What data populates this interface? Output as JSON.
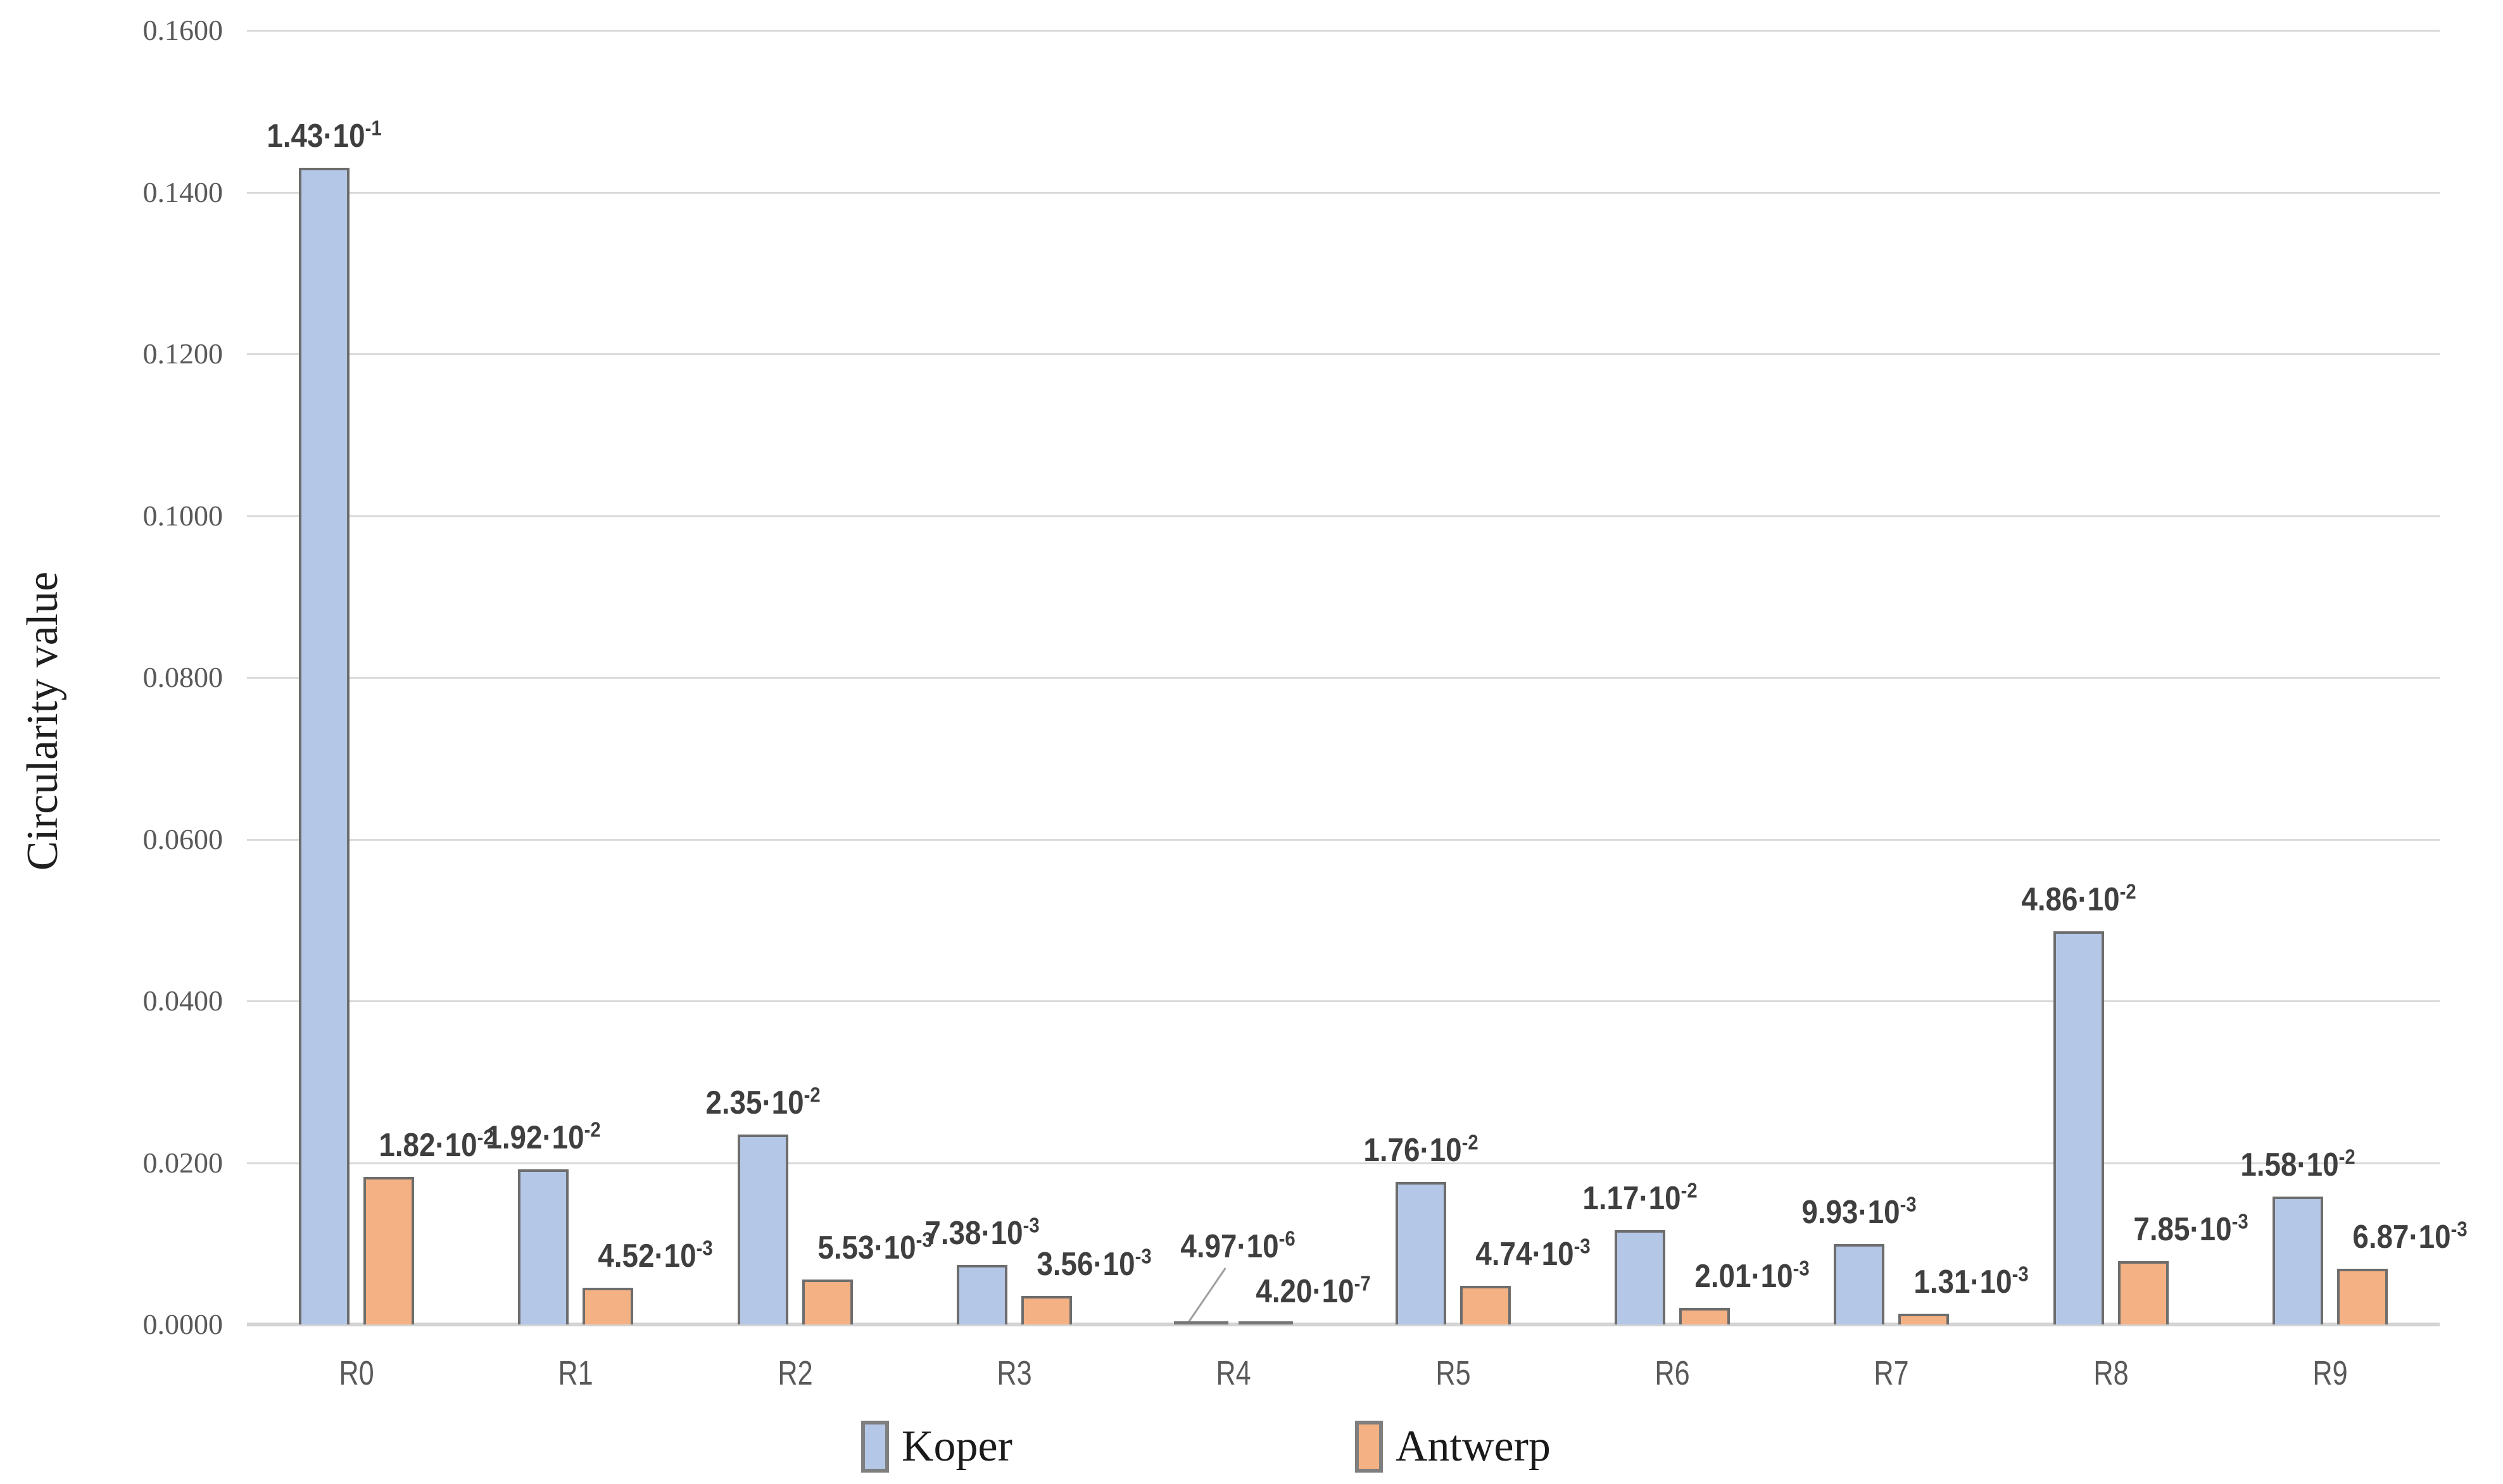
{
  "chart_data": {
    "type": "bar",
    "title": "",
    "ylabel": "Circularity value",
    "xlabel": "",
    "categories": [
      "R0",
      "R1",
      "R2",
      "R3",
      "R4",
      "R5",
      "R6",
      "R7",
      "R8",
      "R9"
    ],
    "series": [
      {
        "name": "Koper",
        "color": "#b4c7e7",
        "border_color": "#6d6d6d",
        "values": [
          0.143,
          0.0192,
          0.0235,
          0.00738,
          4.97e-06,
          0.0176,
          0.0117,
          0.00993,
          0.0486,
          0.0158
        ],
        "labels": [
          {
            "mantissa": "1.43",
            "exponent": "-1"
          },
          {
            "mantissa": "1.92",
            "exponent": "-2"
          },
          {
            "mantissa": "2.35",
            "exponent": "-2"
          },
          {
            "mantissa": "7.38",
            "exponent": "-3"
          },
          {
            "mantissa": "4.97",
            "exponent": "-6"
          },
          {
            "mantissa": "1.76",
            "exponent": "-2"
          },
          {
            "mantissa": "1.17",
            "exponent": "-2"
          },
          {
            "mantissa": "9.93",
            "exponent": "-3"
          },
          {
            "mantissa": "4.86",
            "exponent": "-2"
          },
          {
            "mantissa": "1.58",
            "exponent": "-2"
          }
        ]
      },
      {
        "name": "Antwerp",
        "color": "#f4b183",
        "border_color": "#6d6d6d",
        "values": [
          0.0182,
          0.00452,
          0.00553,
          0.00356,
          4.2e-07,
          0.00474,
          0.00201,
          0.00131,
          0.00785,
          0.00687
        ],
        "labels": [
          {
            "mantissa": "1.82",
            "exponent": "-2"
          },
          {
            "mantissa": "4.52",
            "exponent": "-3"
          },
          {
            "mantissa": "5.53",
            "exponent": "-3"
          },
          {
            "mantissa": "3.56",
            "exponent": "-3"
          },
          {
            "mantissa": "4.20",
            "exponent": "-7"
          },
          {
            "mantissa": "4.74",
            "exponent": "-3"
          },
          {
            "mantissa": "2.01",
            "exponent": "-3"
          },
          {
            "mantissa": "1.31",
            "exponent": "-3"
          },
          {
            "mantissa": "7.85",
            "exponent": "-3"
          },
          {
            "mantissa": "6.87",
            "exponent": "-3"
          }
        ]
      }
    ],
    "label_format": {
      "multiplier": "·10"
    },
    "ylim": [
      0,
      0.16
    ],
    "ytick_step": 0.02,
    "yticks": [
      "0.0000",
      "0.0200",
      "0.0400",
      "0.0600",
      "0.0800",
      "0.1000",
      "0.1200",
      "0.1400",
      "0.1600"
    ],
    "grid": true,
    "legend_position": "bottom",
    "colors": {
      "gridline": "#d9d9d9",
      "axis_line": "#d3d3d3",
      "tick_text": "#595959",
      "data_label_text": "#3f3f3f",
      "axis_title_text": "#1f1f1f",
      "legend_text": "#1a1a1a",
      "leader_line": "#9e9e9e",
      "tiny_bar_dash": "#767676"
    },
    "label_overrides": {
      "Koper": {
        "R4": {
          "dx": 58,
          "raise": 95,
          "leader": true
        }
      }
    }
  }
}
